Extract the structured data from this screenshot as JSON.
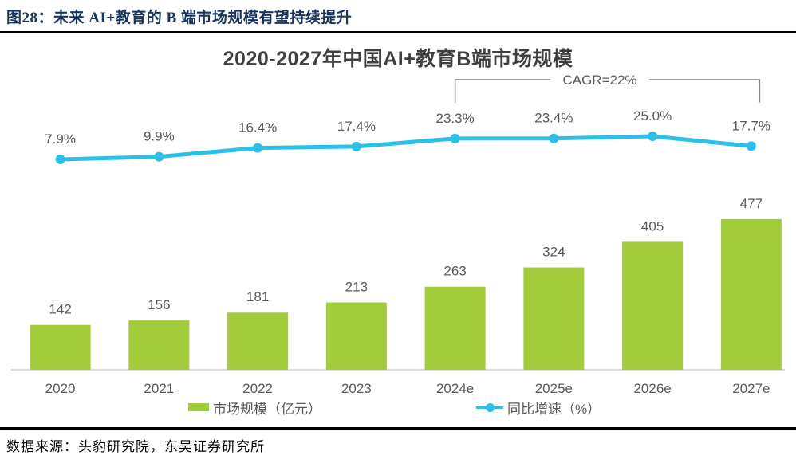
{
  "header": {
    "title": "图28：未来 AI+教育的 B 端市场规模有望持续提升"
  },
  "source": {
    "text": "数据来源：头豹研究院，东吴证券研究所"
  },
  "chart_data": {
    "type": "bar",
    "subtype": "bar-line-combo",
    "title": "2020-2027年中国AI+教育B端市场规模",
    "categories": [
      "2020",
      "2021",
      "2022",
      "2023",
      "2024e",
      "2025e",
      "2026e",
      "2027e"
    ],
    "series": [
      {
        "name": "市场规模（亿元）",
        "type": "bar",
        "values": [
          142,
          156,
          181,
          213,
          263,
          324,
          405,
          477
        ],
        "labels": [
          "142",
          "156",
          "181",
          "213",
          "263",
          "324",
          "405",
          "477"
        ],
        "color": "#a3cc3a"
      },
      {
        "name": "同比增速（%）",
        "type": "line",
        "values": [
          7.9,
          9.9,
          16.4,
          17.4,
          23.3,
          23.4,
          25.0,
          17.7
        ],
        "labels": [
          "7.9%",
          "9.9%",
          "16.4%",
          "17.4%",
          "23.3%",
          "23.4%",
          "25.0%",
          "17.7%"
        ],
        "color": "#2bc0e8"
      }
    ],
    "annotation": {
      "label": "CAGR=22%",
      "from": "2024e",
      "to": "2027e"
    },
    "legend_position": "bottom",
    "grid": false,
    "value_axes_visible": false,
    "label_color": "#595959",
    "axis_line_color": "#c6c6c6"
  }
}
